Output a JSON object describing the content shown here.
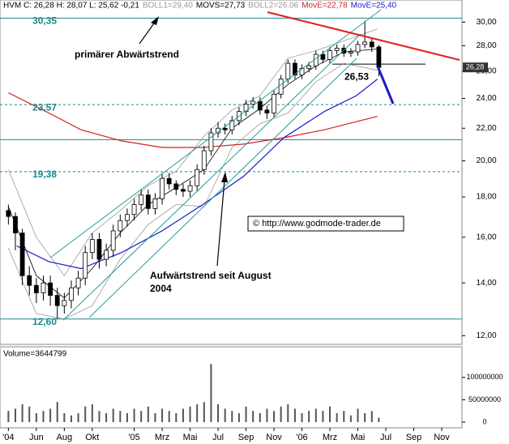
{
  "chart_data": {
    "type": "candlestick",
    "ticker": "HVM C: 26,28 H: 28,07 L: 25,62 -0,21",
    "x": [
      0,
      0.5,
      1,
      1.5,
      2,
      2.5,
      3,
      3.5,
      4,
      4.5,
      5,
      5.5,
      6,
      6.5,
      7,
      7.5,
      8,
      8.5,
      9,
      9.5,
      10,
      10.5,
      11,
      11.5,
      12,
      12.5,
      13,
      13.5,
      14,
      14.5,
      15,
      15.5,
      16,
      16.5,
      17,
      17.5,
      18,
      18.5,
      19,
      19.5,
      20,
      20.5,
      21,
      21.5,
      22,
      22.5,
      23,
      23.5,
      24,
      24.5,
      25,
      25.5,
      26,
      26.5
    ],
    "open": [
      17.3,
      17.0,
      16.2,
      14.3,
      13.9,
      13.6,
      14.0,
      13.5,
      13.1,
      13.3,
      13.8,
      14.2,
      15.3,
      15.9,
      15.0,
      15.4,
      16.3,
      16.8,
      17.1,
      17.6,
      18.1,
      17.4,
      17.9,
      19.0,
      18.7,
      18.4,
      18.3,
      18.6,
      19.5,
      20.6,
      21.7,
      22.0,
      21.9,
      22.5,
      23.1,
      23.6,
      23.8,
      23.2,
      23.0,
      24.3,
      25.4,
      26.6,
      25.7,
      26.2,
      26.4,
      27.3,
      26.9,
      27.6,
      27.8,
      27.4,
      27.5,
      28.1,
      28.3,
      27.9
    ],
    "high": [
      17.6,
      17.2,
      16.4,
      14.7,
      14.2,
      14.3,
      14.3,
      13.8,
      13.6,
      14.1,
      14.5,
      15.6,
      16.2,
      16.2,
      15.7,
      16.6,
      17.1,
      17.4,
      17.9,
      18.4,
      18.4,
      18.2,
      19.3,
      19.3,
      18.9,
      18.7,
      18.9,
      19.8,
      20.9,
      22.0,
      22.4,
      22.3,
      22.8,
      23.4,
      23.9,
      24.1,
      24.1,
      23.5,
      24.6,
      25.7,
      26.9,
      26.9,
      26.5,
      26.7,
      27.6,
      27.6,
      27.9,
      28.1,
      28.1,
      27.8,
      28.4,
      30.1,
      28.6,
      28.07
    ],
    "low": [
      16.6,
      15.4,
      13.9,
      13.5,
      13.2,
      13.3,
      13.1,
      12.6,
      12.8,
      13.0,
      13.5,
      13.9,
      15.0,
      14.6,
      14.7,
      15.1,
      16.0,
      16.5,
      16.8,
      17.3,
      17.1,
      17.1,
      17.6,
      18.4,
      18.1,
      18.0,
      18.0,
      18.3,
      19.2,
      20.3,
      21.4,
      21.6,
      21.6,
      22.2,
      22.8,
      23.3,
      22.9,
      22.6,
      22.7,
      24.0,
      25.1,
      25.4,
      25.4,
      25.9,
      26.1,
      26.6,
      26.6,
      27.3,
      27.1,
      27.1,
      27.2,
      27.8,
      27.5,
      25.62
    ],
    "close": [
      17.0,
      16.2,
      14.3,
      13.9,
      13.6,
      14.0,
      13.5,
      13.1,
      13.3,
      13.8,
      14.2,
      15.3,
      15.9,
      15.0,
      15.4,
      16.3,
      16.8,
      17.1,
      17.6,
      18.1,
      17.4,
      17.9,
      19.0,
      18.7,
      18.4,
      18.3,
      18.6,
      19.5,
      20.6,
      21.7,
      22.0,
      21.9,
      22.5,
      23.1,
      23.6,
      23.8,
      23.2,
      23.0,
      24.3,
      25.4,
      26.6,
      25.7,
      26.2,
      26.4,
      27.3,
      26.9,
      27.6,
      27.8,
      27.4,
      27.5,
      28.1,
      28.3,
      27.9,
      26.28
    ],
    "up_color": "#ffffff",
    "down_color": "#000000",
    "xlim": [
      -0.6,
      32.45
    ],
    "xticks": [
      {
        "value": 0,
        "label": "'04"
      },
      {
        "value": 2,
        "label": "Jun"
      },
      {
        "value": 4,
        "label": "Aug"
      },
      {
        "value": 6,
        "label": "Okt"
      },
      {
        "value": 9,
        "label": "'05"
      },
      {
        "value": 11,
        "label": "Mrz"
      },
      {
        "value": 13,
        "label": "Mai"
      },
      {
        "value": 15,
        "label": "Jul"
      },
      {
        "value": 17,
        "label": "Sep"
      },
      {
        "value": 19,
        "label": "Nov"
      },
      {
        "value": 21,
        "label": "'06"
      },
      {
        "value": 23,
        "label": "Mrz"
      },
      {
        "value": 25,
        "label": "Mai"
      },
      {
        "value": 27,
        "label": "Jul"
      },
      {
        "value": 29,
        "label": "Sep"
      },
      {
        "value": 31,
        "label": "Nov"
      }
    ],
    "ylim": [
      11.7,
      32.0
    ],
    "log_scale": true,
    "yticks": [
      {
        "value": 12,
        "label": "12,00"
      },
      {
        "value": 14,
        "label": "14,00"
      },
      {
        "value": 16,
        "label": "16,00"
      },
      {
        "value": 18,
        "label": "18,00"
      },
      {
        "value": 20,
        "label": "20,00"
      },
      {
        "value": 22,
        "label": "22,00"
      },
      {
        "value": 24,
        "label": "24,00"
      },
      {
        "value": 26,
        "label": "26,00"
      },
      {
        "value": 28,
        "label": "28,00"
      },
      {
        "value": 30,
        "label": "30,00"
      }
    ],
    "overlays": [
      {
        "name": "BOLL1=29,40",
        "color": "#9a9a9a",
        "x": [
          0,
          2,
          4,
          6,
          8,
          10,
          12,
          14,
          16,
          18,
          20,
          22,
          24,
          26.4
        ],
        "values": [
          19.5,
          16.0,
          14.3,
          16.2,
          17.3,
          18.6,
          19.4,
          21.5,
          23.2,
          24.2,
          27.0,
          27.6,
          28.4,
          29.4
        ]
      },
      {
        "name": "MOVS=27,73",
        "color": "#000000",
        "x": [
          0,
          2,
          4,
          6,
          8,
          10,
          12,
          14,
          16,
          18,
          20,
          22,
          24,
          26.4
        ],
        "values": [
          17.5,
          14.3,
          13.4,
          14.6,
          16.2,
          17.6,
          18.5,
          19.5,
          22.0,
          23.3,
          25.0,
          26.4,
          27.5,
          27.73
        ]
      },
      {
        "name": "BOLL2=26,06",
        "color": "#9a9a9a",
        "x": [
          0,
          2,
          4,
          6,
          8,
          10,
          12,
          14,
          16,
          18,
          20,
          22,
          24,
          26.4
        ],
        "values": [
          15.5,
          12.8,
          12.6,
          13.1,
          15.0,
          16.6,
          17.6,
          17.5,
          20.8,
          22.3,
          23.0,
          25.2,
          26.6,
          26.06
        ]
      },
      {
        "name": "MovE=22,78",
        "color": "#d42020",
        "x": [
          0,
          2.9,
          5.2,
          8.1,
          11.0,
          13.9,
          16.8,
          19.7,
          22.6,
          26.4
        ],
        "values": [
          24.4,
          23.0,
          21.9,
          21.2,
          20.8,
          20.8,
          21.0,
          21.4,
          21.9,
          22.78
        ]
      },
      {
        "name": "MovE=25,40",
        "color": "#1a1acc",
        "x": [
          0.6,
          2.9,
          5.2,
          8.1,
          11.0,
          13.9,
          16.8,
          19.7,
          22.6,
          24.9,
          26.4
        ],
        "values": [
          15.6,
          14.9,
          14.6,
          15.3,
          16.3,
          17.6,
          19.1,
          21.4,
          23.1,
          24.2,
          25.4
        ]
      }
    ],
    "levels": [
      {
        "value": 30.35,
        "label": "30,35",
        "style": "solid"
      },
      {
        "value": 26.53,
        "label": "26,53",
        "style": "short"
      },
      {
        "value": 23.57,
        "label": "23,57",
        "style": "dashed"
      },
      {
        "value": 21.28,
        "label": null,
        "style": "solid"
      },
      {
        "value": 19.38,
        "label": "19,38",
        "style": "dashed"
      },
      {
        "value": 12.6,
        "label": "12,60",
        "style": "solid"
      }
    ],
    "level_color": "#1a8a8a",
    "last_price": {
      "value": 26.28,
      "label": "26,28"
    },
    "annotations": [
      {
        "text": "primärer Abwärtstrend"
      },
      {
        "text": "Aufwärtstrend seit August"
      },
      {
        "text": "2004"
      },
      {
        "text": "© http://www.godmode-trader.de"
      }
    ],
    "volume": {
      "label": "Volume=3644799",
      "color": "#555555",
      "values": [
        25000000,
        30000000,
        40000000,
        35000000,
        20000000,
        25000000,
        30000000,
        45000000,
        20000000,
        15000000,
        20000000,
        35000000,
        40000000,
        25000000,
        20000000,
        30000000,
        25000000,
        20000000,
        30000000,
        25000000,
        35000000,
        20000000,
        30000000,
        25000000,
        20000000,
        30000000,
        35000000,
        40000000,
        45000000,
        130000000,
        40000000,
        30000000,
        25000000,
        20000000,
        35000000,
        25000000,
        20000000,
        30000000,
        25000000,
        35000000,
        40000000,
        30000000,
        20000000,
        25000000,
        30000000,
        25000000,
        35000000,
        20000000,
        25000000,
        15000000,
        30000000,
        20000000,
        25000000,
        10000000
      ],
      "ylim": [
        0,
        165000000
      ],
      "yticks": [
        0,
        50000000,
        100000000
      ]
    }
  }
}
